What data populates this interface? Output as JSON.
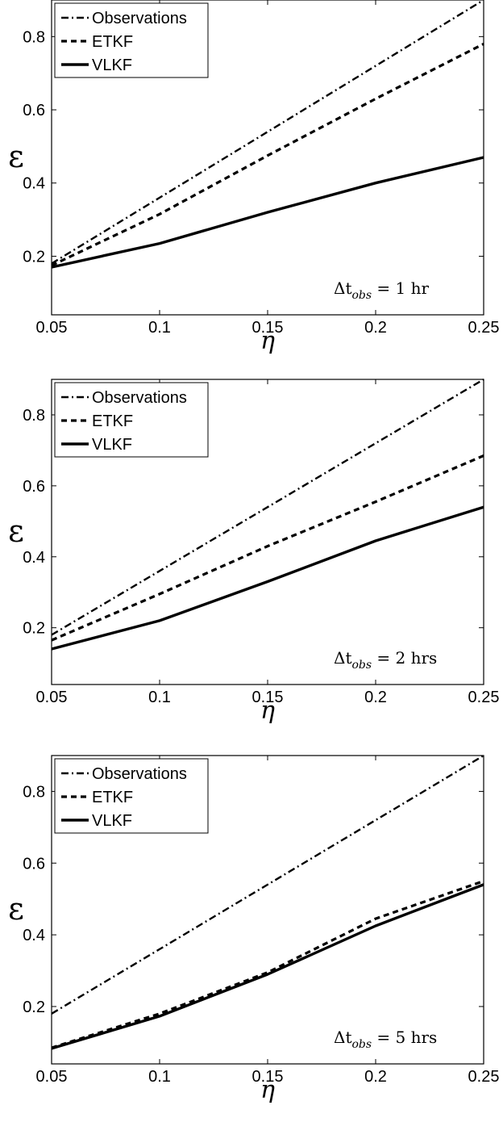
{
  "chart_data": [
    {
      "type": "line",
      "x": [
        0.05,
        0.1,
        0.15,
        0.2,
        0.25
      ],
      "xlabel": "η",
      "ylabel": "ε",
      "xlim": [
        0.05,
        0.25
      ],
      "ylim": [
        0.04,
        0.9
      ],
      "xticks": [
        "0.05",
        "0.1",
        "0.15",
        "0.2",
        "0.25"
      ],
      "yticks": [
        "0.2",
        "0.4",
        "0.6",
        "0.8"
      ],
      "annotation": {
        "prefix": "Δt",
        "sub": "obs",
        "suffix": " = 1 hr"
      },
      "legend_position": "top-left",
      "grid": false,
      "series": [
        {
          "name": "Observations",
          "style": "dash-dot",
          "values": [
            0.18,
            0.36,
            0.54,
            0.72,
            0.9
          ]
        },
        {
          "name": "ETKF",
          "style": "dashed",
          "values": [
            0.175,
            0.315,
            0.475,
            0.63,
            0.78
          ]
        },
        {
          "name": "VLKF",
          "style": "solid",
          "values": [
            0.17,
            0.235,
            0.32,
            0.4,
            0.47
          ]
        }
      ]
    },
    {
      "type": "line",
      "x": [
        0.05,
        0.1,
        0.15,
        0.2,
        0.25
      ],
      "xlabel": "η",
      "ylabel": "ε",
      "xlim": [
        0.05,
        0.25
      ],
      "ylim": [
        0.04,
        0.9
      ],
      "xticks": [
        "0.05",
        "0.1",
        "0.15",
        "0.2",
        "0.25"
      ],
      "yticks": [
        "0.2",
        "0.4",
        "0.6",
        "0.8"
      ],
      "annotation": {
        "prefix": "Δt",
        "sub": "obs",
        "suffix": " = 2 hrs"
      },
      "legend_position": "top-left",
      "grid": false,
      "series": [
        {
          "name": "Observations",
          "style": "dash-dot",
          "values": [
            0.18,
            0.36,
            0.54,
            0.72,
            0.9
          ]
        },
        {
          "name": "ETKF",
          "style": "dashed",
          "values": [
            0.165,
            0.295,
            0.43,
            0.555,
            0.685
          ]
        },
        {
          "name": "VLKF",
          "style": "solid",
          "values": [
            0.14,
            0.22,
            0.33,
            0.445,
            0.54
          ]
        }
      ]
    },
    {
      "type": "line",
      "x": [
        0.05,
        0.1,
        0.15,
        0.2,
        0.25
      ],
      "xlabel": "η",
      "ylabel": "ε",
      "xlim": [
        0.05,
        0.25
      ],
      "ylim": [
        0.04,
        0.9
      ],
      "xticks": [
        "0.05",
        "0.1",
        "0.15",
        "0.2",
        "0.25"
      ],
      "yticks": [
        "0.2",
        "0.4",
        "0.6",
        "0.8"
      ],
      "annotation": {
        "prefix": "Δt",
        "sub": "obs",
        "suffix": " = 5 hrs"
      },
      "legend_position": "top-left",
      "grid": false,
      "series": [
        {
          "name": "Observations",
          "style": "dash-dot",
          "values": [
            0.18,
            0.36,
            0.54,
            0.72,
            0.9
          ]
        },
        {
          "name": "ETKF",
          "style": "dashed",
          "values": [
            0.085,
            0.18,
            0.295,
            0.445,
            0.55
          ]
        },
        {
          "name": "VLKF",
          "style": "solid",
          "values": [
            0.083,
            0.173,
            0.29,
            0.425,
            0.54
          ]
        }
      ]
    }
  ]
}
